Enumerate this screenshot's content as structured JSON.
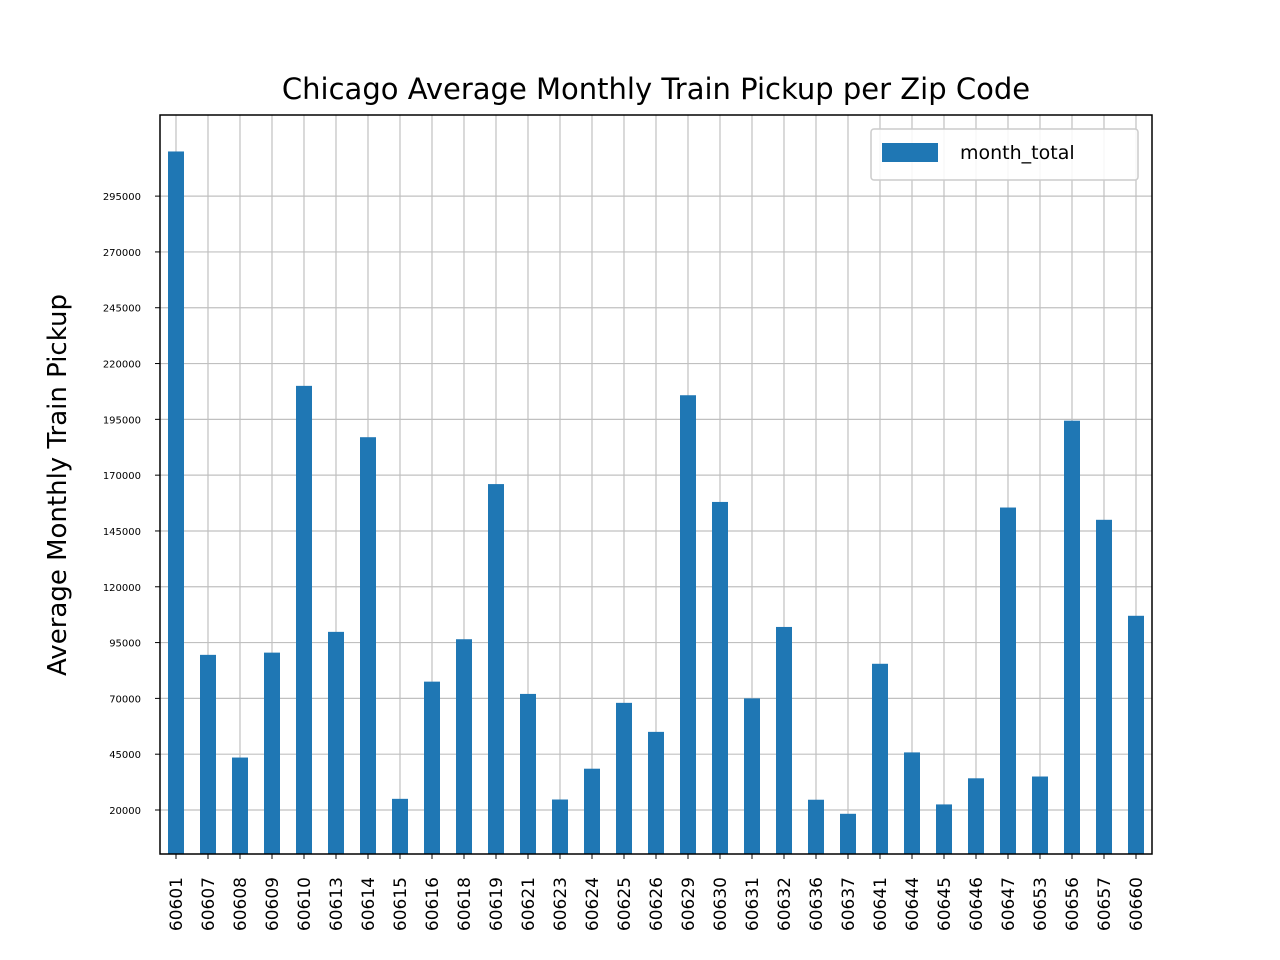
{
  "colors": {
    "bar": "#1f77b4",
    "grid": "#c0c0c0",
    "axis": "#000000",
    "background": "#ffffff"
  },
  "chart_data": {
    "type": "bar",
    "title": "Chicago Average Monthly Train Pickup per Zip Code",
    "xlabel": "",
    "ylabel": "Average Monthly Train Pickup",
    "ylim": [
      0,
      330000
    ],
    "yticks": [
      20000,
      45000,
      70000,
      95000,
      120000,
      145000,
      170000,
      195000,
      220000,
      245000,
      270000,
      295000
    ],
    "grid": true,
    "legend_position": "top-right",
    "categories": [
      "60601",
      "60607",
      "60608",
      "60609",
      "60610",
      "60613",
      "60614",
      "60615",
      "60616",
      "60618",
      "60619",
      "60621",
      "60623",
      "60624",
      "60625",
      "60626",
      "60629",
      "60630",
      "60631",
      "60632",
      "60636",
      "60637",
      "60641",
      "60644",
      "60645",
      "60646",
      "60647",
      "60653",
      "60656",
      "60657",
      "60660"
    ],
    "series": [
      {
        "name": "month_total",
        "values": [
          315000,
          89500,
          43500,
          90500,
          210000,
          99800,
          187000,
          25000,
          77500,
          96500,
          166000,
          72000,
          24700,
          38500,
          68000,
          55000,
          205800,
          158000,
          70000,
          102000,
          24600,
          18300,
          85500,
          45800,
          22500,
          34200,
          155500,
          35000,
          194400,
          150000,
          107000
        ]
      }
    ]
  }
}
